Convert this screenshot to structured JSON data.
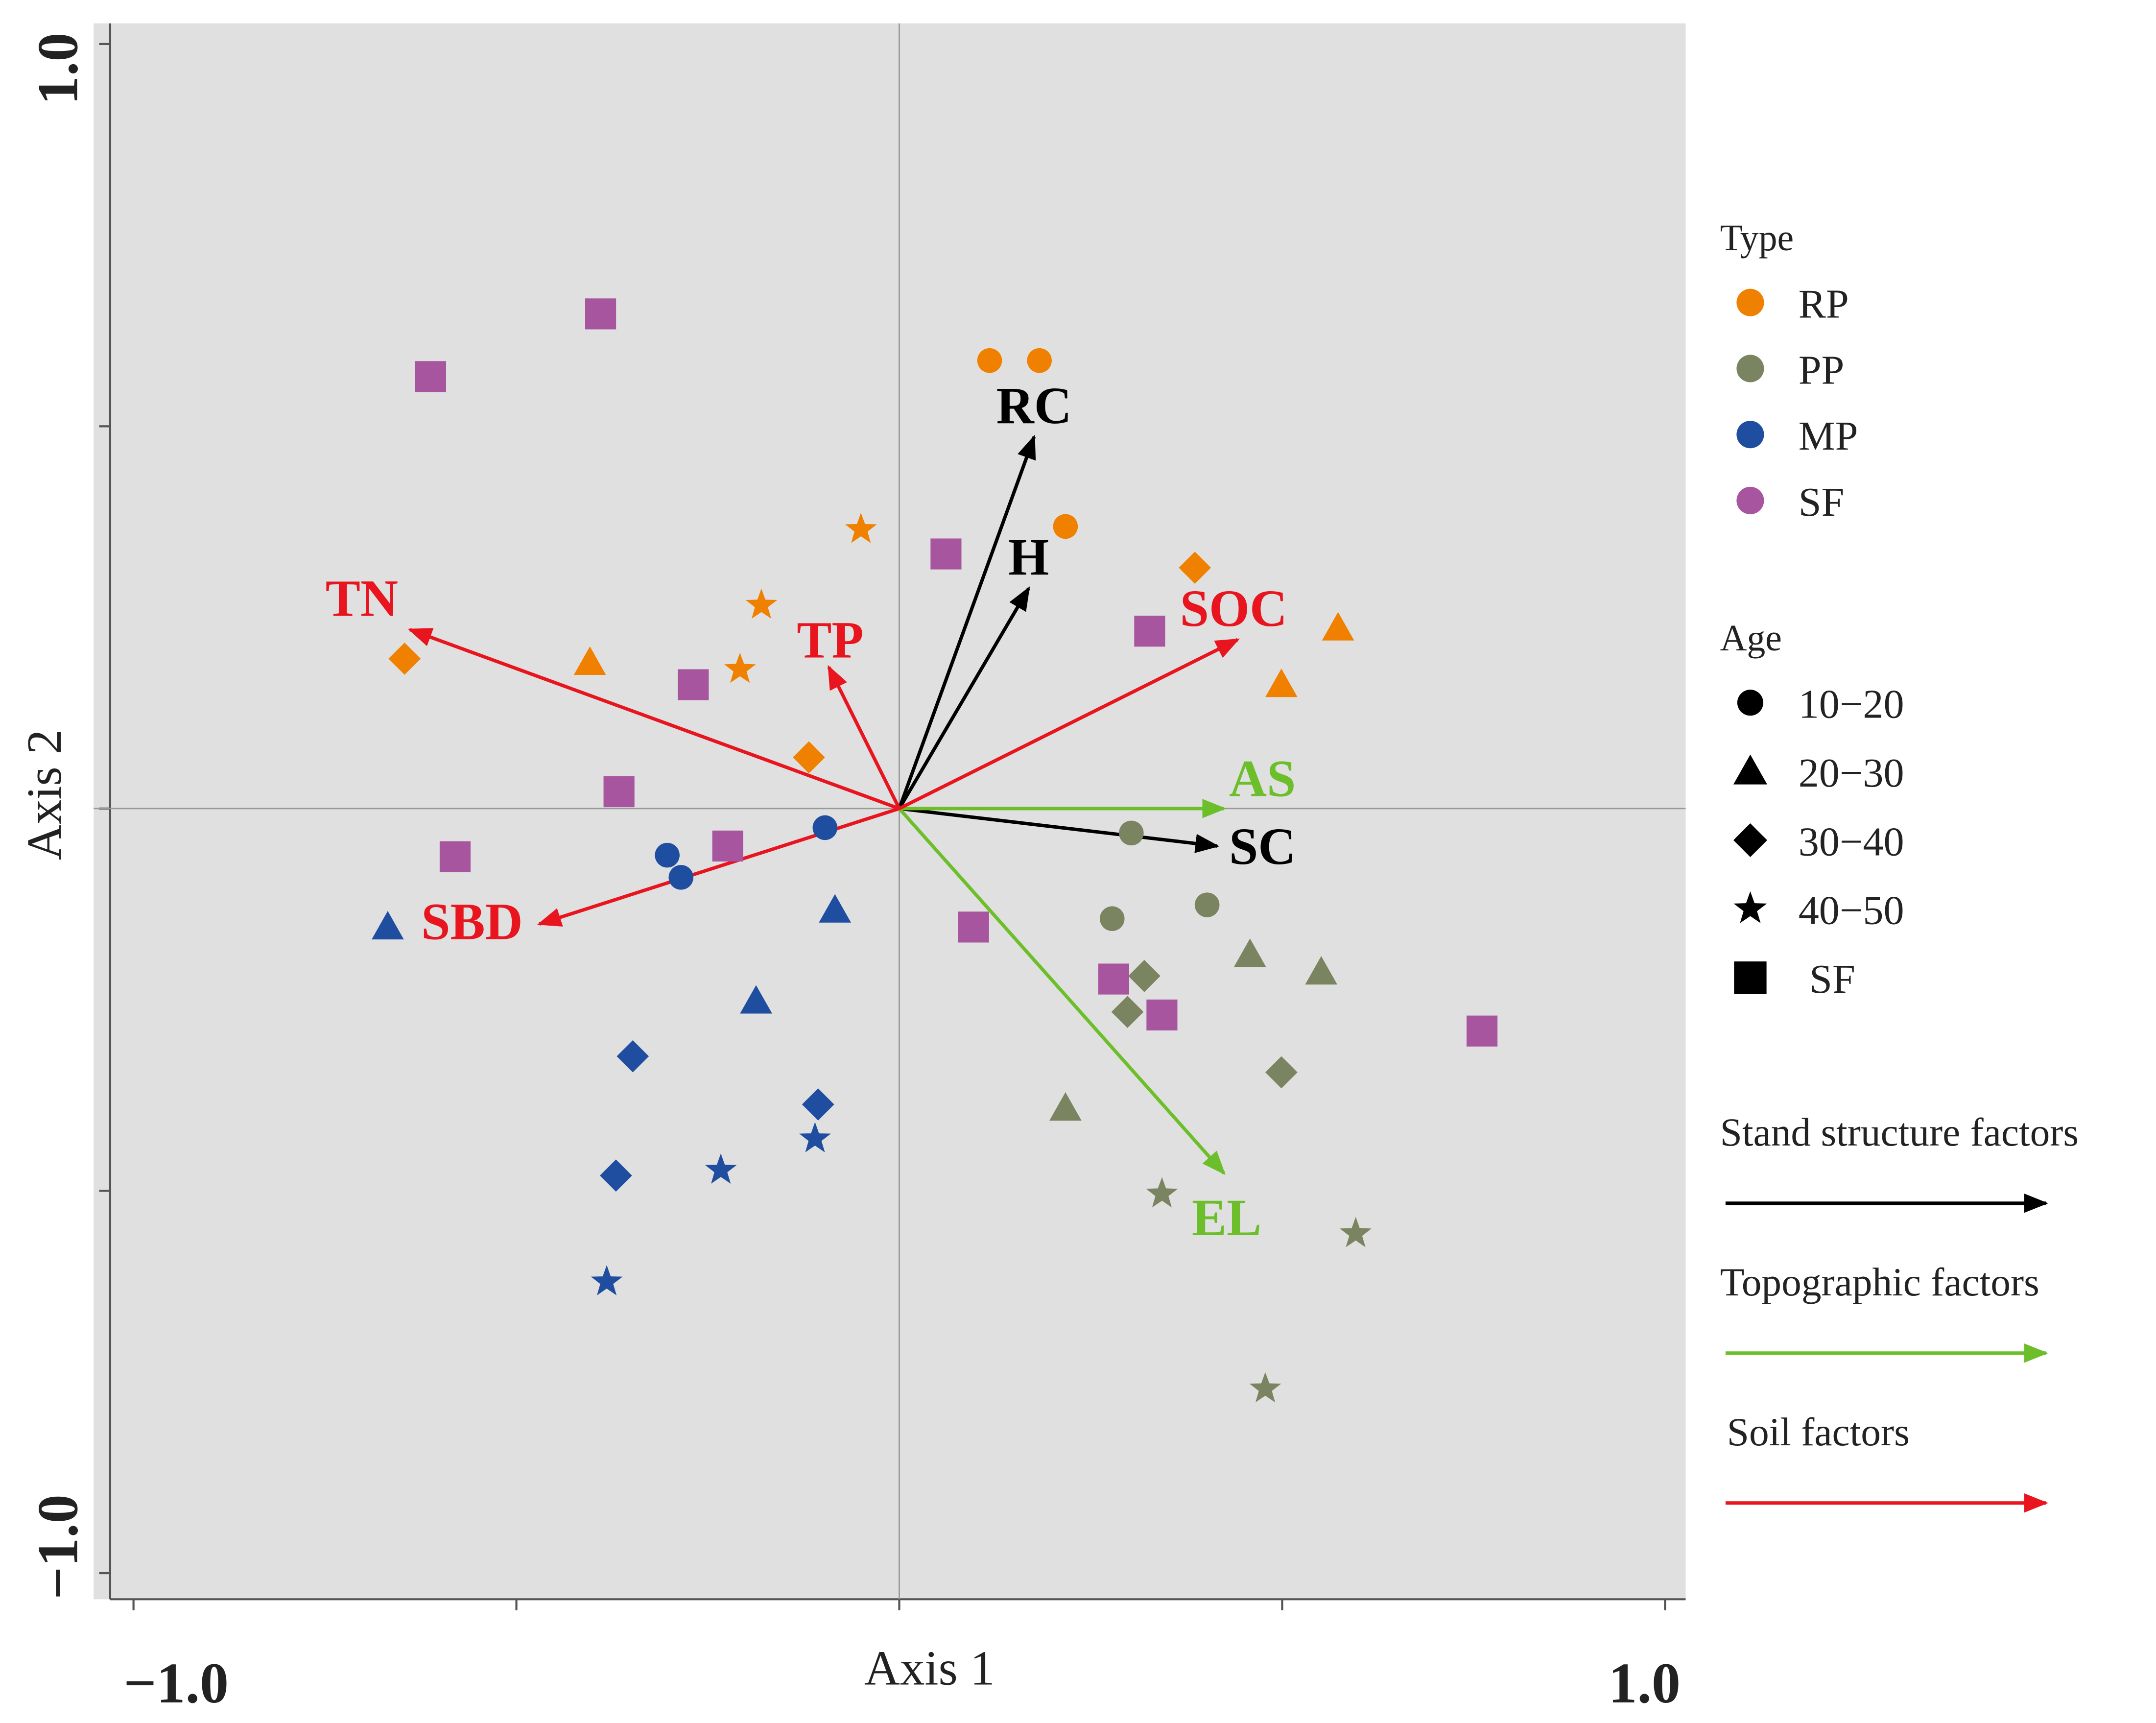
{
  "chart_data": {
    "type": "scatter",
    "title": "",
    "xlabel": "Axis 1",
    "ylabel": "Axis 2",
    "xlim": [
      -1.0,
      1.0
    ],
    "ylim": [
      -1.0,
      1.0
    ],
    "x_tick_labels": [
      "−1.0",
      "1.0"
    ],
    "y_tick_labels": [
      "1.0",
      "−1.0"
    ],
    "x_ticks": [
      -1.0,
      -0.5,
      0,
      0.5,
      1.0
    ],
    "y_ticks": [
      -1.0,
      -0.5,
      0,
      0.5,
      1.0
    ],
    "grid": false,
    "reference_lines": [
      0,
      0
    ],
    "legend_placement": "right",
    "colors": {
      "RP": "#f08000",
      "PP": "#7b8460",
      "MP": "#1f4ea0",
      "SF": "#a855a0",
      "stand": "#000000",
      "topo": "#6cbf2a",
      "soil": "#e8141e",
      "panel": "#e0e0e0"
    },
    "legend": {
      "type_title": "Type",
      "types": [
        "RP",
        "PP",
        "MP",
        "SF"
      ],
      "age_title": "Age",
      "ages": [
        {
          "label": "10−20",
          "shape": "circle"
        },
        {
          "label": "20−30",
          "shape": "triangle"
        },
        {
          "label": "30−40",
          "shape": "diamond"
        },
        {
          "label": "40−50",
          "shape": "star"
        },
        {
          "label": "SF",
          "shape": "square"
        }
      ],
      "factors": [
        {
          "label": "Stand structure factors",
          "group": "stand"
        },
        {
          "label": "Topographic factors",
          "group": "topo"
        },
        {
          "label": "Soil factors",
          "group": "soil"
        }
      ]
    },
    "vectors": [
      {
        "name": "RC",
        "group": "stand",
        "x": 0.176,
        "y": 0.486
      },
      {
        "name": "H",
        "group": "stand",
        "x": 0.169,
        "y": 0.288
      },
      {
        "name": "SC",
        "group": "stand",
        "x": 0.415,
        "y": -0.049
      },
      {
        "name": "AS",
        "group": "topo",
        "x": 0.424,
        "y": 0.0
      },
      {
        "name": "EL",
        "group": "topo",
        "x": 0.424,
        "y": -0.477
      },
      {
        "name": "SOC",
        "group": "soil",
        "x": 0.442,
        "y": 0.221
      },
      {
        "name": "TN",
        "group": "soil",
        "x": -0.639,
        "y": 0.234
      },
      {
        "name": "TP",
        "group": "soil",
        "x": -0.092,
        "y": 0.185
      },
      {
        "name": "SBD",
        "group": "soil",
        "x": -0.47,
        "y": -0.151
      }
    ],
    "points": [
      {
        "type": "RP",
        "shape": "circle",
        "x": 0.118,
        "y": 0.586
      },
      {
        "type": "RP",
        "shape": "circle",
        "x": 0.183,
        "y": 0.586
      },
      {
        "type": "RP",
        "shape": "circle",
        "x": 0.217,
        "y": 0.369
      },
      {
        "type": "RP",
        "shape": "star",
        "x": -0.05,
        "y": 0.365
      },
      {
        "type": "RP",
        "shape": "star",
        "x": -0.18,
        "y": 0.266
      },
      {
        "type": "RP",
        "shape": "star",
        "x": -0.208,
        "y": 0.182
      },
      {
        "type": "RP",
        "shape": "diamond",
        "x": -0.646,
        "y": 0.196
      },
      {
        "type": "RP",
        "shape": "diamond",
        "x": -0.118,
        "y": 0.067
      },
      {
        "type": "RP",
        "shape": "diamond",
        "x": 0.386,
        "y": 0.315
      },
      {
        "type": "RP",
        "shape": "triangle",
        "x": -0.404,
        "y": 0.191
      },
      {
        "type": "RP",
        "shape": "triangle",
        "x": 0.573,
        "y": 0.236
      },
      {
        "type": "RP",
        "shape": "triangle",
        "x": 0.499,
        "y": 0.162
      },
      {
        "type": "PP",
        "shape": "circle",
        "x": 0.303,
        "y": -0.032
      },
      {
        "type": "PP",
        "shape": "circle",
        "x": 0.278,
        "y": -0.144
      },
      {
        "type": "PP",
        "shape": "circle",
        "x": 0.402,
        "y": -0.126
      },
      {
        "type": "PP",
        "shape": "triangle",
        "x": 0.458,
        "y": -0.191
      },
      {
        "type": "PP",
        "shape": "triangle",
        "x": 0.551,
        "y": -0.214
      },
      {
        "type": "PP",
        "shape": "triangle",
        "x": 0.217,
        "y": -0.392
      },
      {
        "type": "PP",
        "shape": "diamond",
        "x": 0.32,
        "y": -0.219
      },
      {
        "type": "PP",
        "shape": "diamond",
        "x": 0.298,
        "y": -0.266
      },
      {
        "type": "PP",
        "shape": "diamond",
        "x": 0.499,
        "y": -0.345
      },
      {
        "type": "PP",
        "shape": "star",
        "x": 0.343,
        "y": -0.504
      },
      {
        "type": "PP",
        "shape": "star",
        "x": 0.596,
        "y": -0.556
      },
      {
        "type": "PP",
        "shape": "star",
        "x": 0.478,
        "y": -0.759
      },
      {
        "type": "MP",
        "shape": "circle",
        "x": -0.303,
        "y": -0.061
      },
      {
        "type": "MP",
        "shape": "circle",
        "x": -0.285,
        "y": -0.09
      },
      {
        "type": "MP",
        "shape": "circle",
        "x": -0.097,
        "y": -0.025
      },
      {
        "type": "MP",
        "shape": "triangle",
        "x": -0.668,
        "y": -0.155
      },
      {
        "type": "MP",
        "shape": "triangle",
        "x": -0.084,
        "y": -0.133
      },
      {
        "type": "MP",
        "shape": "triangle",
        "x": -0.187,
        "y": -0.252
      },
      {
        "type": "MP",
        "shape": "diamond",
        "x": -0.348,
        "y": -0.324
      },
      {
        "type": "MP",
        "shape": "diamond",
        "x": -0.106,
        "y": -0.387
      },
      {
        "type": "MP",
        "shape": "diamond",
        "x": -0.37,
        "y": -0.48
      },
      {
        "type": "MP",
        "shape": "star",
        "x": -0.11,
        "y": -0.432
      },
      {
        "type": "MP",
        "shape": "star",
        "x": -0.233,
        "y": -0.473
      },
      {
        "type": "MP",
        "shape": "star",
        "x": -0.382,
        "y": -0.619
      },
      {
        "type": "SF",
        "shape": "square",
        "x": -0.39,
        "y": 0.647
      },
      {
        "type": "SF",
        "shape": "square",
        "x": -0.612,
        "y": 0.565
      },
      {
        "type": "SF",
        "shape": "square",
        "x": 0.061,
        "y": 0.333
      },
      {
        "type": "SF",
        "shape": "square",
        "x": 0.327,
        "y": 0.232
      },
      {
        "type": "SF",
        "shape": "square",
        "x": -0.269,
        "y": 0.162
      },
      {
        "type": "SF",
        "shape": "square",
        "x": -0.366,
        "y": 0.022
      },
      {
        "type": "SF",
        "shape": "square",
        "x": -0.58,
        "y": -0.063
      },
      {
        "type": "SF",
        "shape": "square",
        "x": -0.224,
        "y": -0.049
      },
      {
        "type": "SF",
        "shape": "square",
        "x": 0.097,
        "y": -0.155
      },
      {
        "type": "SF",
        "shape": "square",
        "x": 0.28,
        "y": -0.223
      },
      {
        "type": "SF",
        "shape": "square",
        "x": 0.343,
        "y": -0.27
      },
      {
        "type": "SF",
        "shape": "square",
        "x": 0.761,
        "y": -0.291
      }
    ]
  }
}
